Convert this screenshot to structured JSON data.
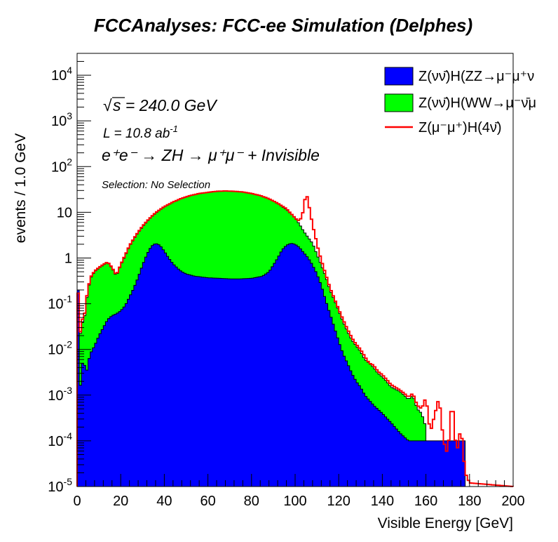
{
  "chart_data": {
    "type": "area",
    "title": "FCCAnalyses: FCC-ee Simulation (Delphes)",
    "xlabel": "Visible Energy [GeV]",
    "ylabel": "events / 1.0 GeV",
    "xlim": [
      0,
      200
    ],
    "ylim": [
      1e-05,
      30000
    ],
    "log_y": true,
    "bin_width": 1.0,
    "grid": false,
    "legend_position": "top-right",
    "x_ticks": [
      "0",
      "20",
      "40",
      "60",
      "80",
      "100",
      "120",
      "140",
      "160",
      "180",
      "200"
    ],
    "y_ticks": [
      {
        "base": "10",
        "exp": "-5",
        "value": 1e-05
      },
      {
        "base": "10",
        "exp": "-4",
        "value": 0.0001
      },
      {
        "base": "10",
        "exp": "-3",
        "value": 0.001
      },
      {
        "base": "10",
        "exp": "-2",
        "value": 0.01
      },
      {
        "base": "10",
        "exp": "-1",
        "value": 0.1
      },
      {
        "base": "1",
        "exp": "",
        "value": 1
      },
      {
        "base": "10",
        "exp": "",
        "value": 10
      },
      {
        "base": "10",
        "exp": "2",
        "value": 100
      },
      {
        "base": "10",
        "exp": "3",
        "value": 1000
      },
      {
        "base": "10",
        "exp": "4",
        "value": 10000
      }
    ],
    "annotations": {
      "sqrt_s": "s = 240.0 GeV",
      "lumi_prefix": "L = 10.8 ab",
      "lumi_exp": "-1",
      "process": "e⁺e⁻ → ZH → μ⁺μ⁻ + Invisible",
      "selection": "Selection: No Selection"
    },
    "series": [
      {
        "name": "Z(νν̄)H(ZZ→μ⁻μ⁺ν",
        "style": "filled",
        "color": "#0000ff",
        "points": [
          [
            0,
            1e-05
          ],
          [
            0.5,
            0.2
          ],
          [
            1,
            0.0009
          ],
          [
            2,
            0.003
          ],
          [
            3,
            0.008
          ],
          [
            4,
            0.0025
          ],
          [
            5,
            0.005
          ],
          [
            6,
            0.008
          ],
          [
            8,
            0.012
          ],
          [
            10,
            0.02
          ],
          [
            12,
            0.03
          ],
          [
            14,
            0.045
          ],
          [
            16,
            0.055
          ],
          [
            18,
            0.06
          ],
          [
            20,
            0.07
          ],
          [
            22,
            0.09
          ],
          [
            24,
            0.14
          ],
          [
            26,
            0.22
          ],
          [
            28,
            0.38
          ],
          [
            30,
            0.7
          ],
          [
            32,
            1.2
          ],
          [
            34,
            1.8
          ],
          [
            36,
            2.1
          ],
          [
            38,
            1.9
          ],
          [
            40,
            1.4
          ],
          [
            42,
            1.0
          ],
          [
            44,
            0.75
          ],
          [
            46,
            0.6
          ],
          [
            48,
            0.5
          ],
          [
            50,
            0.45
          ],
          [
            54,
            0.4
          ],
          [
            60,
            0.37
          ],
          [
            65,
            0.36
          ],
          [
            70,
            0.35
          ],
          [
            75,
            0.35
          ],
          [
            80,
            0.36
          ],
          [
            85,
            0.4
          ],
          [
            88,
            0.5
          ],
          [
            90,
            0.7
          ],
          [
            92,
            1.0
          ],
          [
            94,
            1.5
          ],
          [
            96,
            1.9
          ],
          [
            98,
            2.1
          ],
          [
            100,
            2.0
          ],
          [
            102,
            1.7
          ],
          [
            104,
            1.3
          ],
          [
            106,
            1.0
          ],
          [
            108,
            0.7
          ],
          [
            110,
            0.45
          ],
          [
            112,
            0.25
          ],
          [
            114,
            0.12
          ],
          [
            116,
            0.06
          ],
          [
            118,
            0.03
          ],
          [
            120,
            0.015
          ],
          [
            122,
            0.008
          ],
          [
            124,
            0.005
          ],
          [
            126,
            0.003
          ],
          [
            128,
            0.002
          ],
          [
            130,
            0.0015
          ],
          [
            132,
            0.001
          ],
          [
            136,
            0.0006
          ],
          [
            140,
            0.0004
          ],
          [
            144,
            0.00025
          ],
          [
            148,
            0.00015
          ],
          [
            152,
            0.0001
          ],
          [
            156,
            0.0001
          ],
          [
            158,
            0.0001
          ],
          [
            162,
            0.0001
          ],
          [
            166,
            0.0001
          ],
          [
            170,
            0.0001
          ],
          [
            174,
            0.0001
          ],
          [
            178,
            0.0001
          ],
          [
            178.5,
            1e-05
          ],
          [
            200,
            1e-05
          ]
        ]
      },
      {
        "name": "Z(νν̄)H(WW→μ⁻ν̄μ",
        "style": "filled",
        "color": "#00ff00",
        "points": [
          [
            0,
            1e-05
          ],
          [
            0.5,
            0.15
          ],
          [
            1,
            0.01
          ],
          [
            2,
            0.05
          ],
          [
            3,
            0.03
          ],
          [
            4,
            0.1
          ],
          [
            6,
            0.35
          ],
          [
            8,
            0.5
          ],
          [
            10,
            0.6
          ],
          [
            12,
            0.7
          ],
          [
            14,
            0.8
          ],
          [
            16,
            0.6
          ],
          [
            18,
            0.4
          ],
          [
            20,
            0.7
          ],
          [
            22,
            1.1
          ],
          [
            24,
            1.8
          ],
          [
            26,
            2.6
          ],
          [
            28,
            3.6
          ],
          [
            30,
            4.8
          ],
          [
            32,
            6.2
          ],
          [
            34,
            7.8
          ],
          [
            36,
            9.5
          ],
          [
            38,
            11.2
          ],
          [
            40,
            13
          ],
          [
            44,
            16.5
          ],
          [
            48,
            20
          ],
          [
            52,
            23
          ],
          [
            56,
            25.5
          ],
          [
            60,
            27
          ],
          [
            64,
            28.5
          ],
          [
            68,
            29
          ],
          [
            72,
            28.5
          ],
          [
            76,
            27.5
          ],
          [
            80,
            25.5
          ],
          [
            84,
            23
          ],
          [
            88,
            19.5
          ],
          [
            92,
            15.5
          ],
          [
            96,
            11.5
          ],
          [
            100,
            7.5
          ],
          [
            102,
            5.5
          ],
          [
            104,
            3.8
          ],
          [
            106,
            2.8
          ],
          [
            108,
            2.1
          ],
          [
            110,
            1.2
          ],
          [
            112,
            0.7
          ],
          [
            114,
            0.4
          ],
          [
            116,
            0.2
          ],
          [
            118,
            0.12
          ],
          [
            120,
            0.07
          ],
          [
            122,
            0.04
          ],
          [
            124,
            0.025
          ],
          [
            126,
            0.016
          ],
          [
            128,
            0.012
          ],
          [
            130,
            0.009
          ],
          [
            132,
            0.006
          ],
          [
            134,
            0.005
          ],
          [
            136,
            0.004
          ],
          [
            138,
            0.003
          ],
          [
            140,
            0.0025
          ],
          [
            142,
            0.002
          ],
          [
            144,
            0.0015
          ],
          [
            148,
            0.0012
          ],
          [
            150,
            0.001
          ],
          [
            152,
            0.0008
          ],
          [
            154,
            0.001
          ],
          [
            156,
            0.0005
          ],
          [
            158,
            0.0004
          ],
          [
            160,
            0.0002
          ],
          [
            160.5,
            1e-05
          ],
          [
            200,
            1e-05
          ]
        ]
      },
      {
        "name": "Z(μ⁻μ⁺)H(4ν̄)",
        "style": "line",
        "color": "#ff0000",
        "points": [
          [
            0,
            1e-05
          ],
          [
            0.5,
            0.17
          ],
          [
            1,
            0.01
          ],
          [
            2,
            0.06
          ],
          [
            3,
            0.035
          ],
          [
            4,
            0.11
          ],
          [
            6,
            0.37
          ],
          [
            8,
            0.52
          ],
          [
            10,
            0.62
          ],
          [
            12,
            0.72
          ],
          [
            14,
            0.82
          ],
          [
            16,
            0.62
          ],
          [
            18,
            0.42
          ],
          [
            20,
            0.72
          ],
          [
            22,
            1.15
          ],
          [
            24,
            1.85
          ],
          [
            26,
            2.7
          ],
          [
            28,
            3.7
          ],
          [
            30,
            5.0
          ],
          [
            32,
            6.4
          ],
          [
            34,
            8.0
          ],
          [
            36,
            9.8
          ],
          [
            38,
            11.5
          ],
          [
            40,
            13.3
          ],
          [
            44,
            16.8
          ],
          [
            48,
            20.3
          ],
          [
            52,
            23.3
          ],
          [
            56,
            25.8
          ],
          [
            60,
            27.3
          ],
          [
            64,
            28.8
          ],
          [
            68,
            29.3
          ],
          [
            72,
            28.8
          ],
          [
            76,
            27.8
          ],
          [
            80,
            25.8
          ],
          [
            84,
            23.3
          ],
          [
            88,
            19.8
          ],
          [
            92,
            15.8
          ],
          [
            96,
            12
          ],
          [
            98,
            9.5
          ],
          [
            100,
            7.5
          ],
          [
            101,
            6.8
          ],
          [
            102,
            6.5
          ],
          [
            103,
            8
          ],
          [
            104,
            12
          ],
          [
            105,
            30
          ],
          [
            106,
            16
          ],
          [
            107,
            10
          ],
          [
            108,
            5
          ],
          [
            109,
            3.5
          ],
          [
            110,
            2
          ],
          [
            112,
            0.9
          ],
          [
            114,
            0.45
          ],
          [
            116,
            0.22
          ],
          [
            118,
            0.13
          ],
          [
            120,
            0.075
          ],
          [
            122,
            0.045
          ],
          [
            124,
            0.028
          ],
          [
            126,
            0.018
          ],
          [
            128,
            0.013
          ],
          [
            130,
            0.01
          ],
          [
            132,
            0.007
          ],
          [
            134,
            0.005
          ],
          [
            136,
            0.0045
          ],
          [
            138,
            0.0033
          ],
          [
            140,
            0.0028
          ],
          [
            142,
            0.0022
          ],
          [
            144,
            0.0017
          ],
          [
            148,
            0.0013
          ],
          [
            150,
            0.0011
          ],
          [
            152,
            0.0009
          ],
          [
            154,
            0.0011
          ],
          [
            156,
            0.0006
          ],
          [
            158,
            0.0005
          ],
          [
            160,
            0.0009
          ],
          [
            162,
            0.00015
          ],
          [
            166,
            0.0009
          ],
          [
            168,
            0.0001
          ],
          [
            170,
            5e-05
          ],
          [
            172,
            0.0009
          ],
          [
            174,
            5e-05
          ],
          [
            176,
            0.0002
          ],
          [
            178,
            2e-05
          ],
          [
            180,
            1.2e-05
          ],
          [
            200,
            1e-05
          ]
        ]
      }
    ]
  }
}
